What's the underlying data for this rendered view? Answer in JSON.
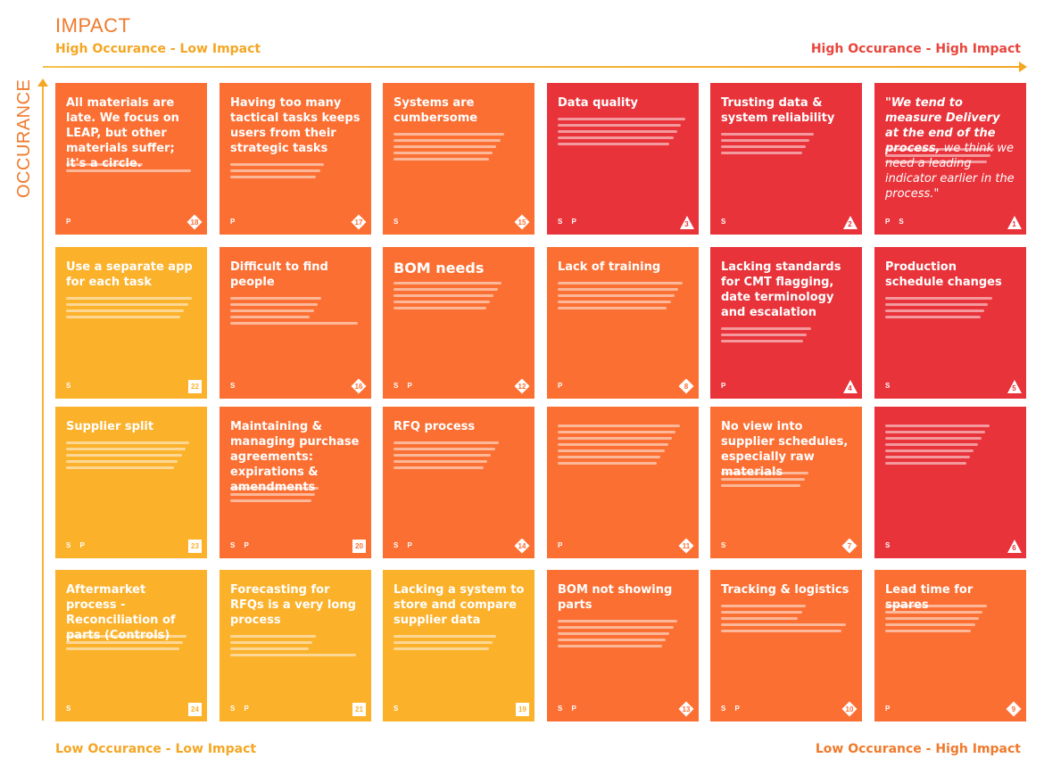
{
  "header": {
    "title": "IMPACT"
  },
  "corners": {
    "top_left": "High Occurance - Low Impact",
    "top_right": "High Occurance - High Impact",
    "bottom_left": "Low Occurance - Low Impact",
    "bottom_right": "Low Occurance - High Impact"
  },
  "y_axis_label": "OCCURANCE",
  "colors": {
    "yellow": "#fbb12a",
    "orange": "#fb6f33",
    "red": "#e8333a",
    "axis": "#f5a623"
  },
  "cards": [
    {
      "title": "All materials are late. We focus on LEAP, but other materials suffer; it's a circle.",
      "tags": "P",
      "number": "18",
      "badge": "diamond",
      "color": "orange"
    },
    {
      "title": "Having too many tactical tasks keeps users from their strategic tasks",
      "tags": "P",
      "number": "17",
      "badge": "diamond",
      "color": "orange"
    },
    {
      "title": "Systems are cumbersome",
      "tags": "S",
      "number": "15",
      "badge": "diamond",
      "color": "orange"
    },
    {
      "title": "Data quality",
      "tags": "S P",
      "number": "3",
      "badge": "triangle",
      "color": "red"
    },
    {
      "title": "Trusting data & system reliability",
      "tags": "S",
      "number": "2",
      "badge": "triangle",
      "color": "red"
    },
    {
      "title_bold": "\"We tend to measure Delivery at the end of the process,",
      "title_rest": " we think we need a leading indicator earlier in the process.\"",
      "tags": "P S",
      "number": "1",
      "badge": "triangle",
      "color": "red",
      "quote": true
    },
    {
      "title": "Use a separate app for each task",
      "tags": "S",
      "number": "22",
      "badge": "square",
      "color": "yellow"
    },
    {
      "title": "Difficult to find people",
      "tags": "S",
      "number": "16",
      "badge": "diamond",
      "color": "orange"
    },
    {
      "title": "BOM needs",
      "tags": "S P",
      "number": "12",
      "badge": "diamond",
      "color": "orange",
      "big": true
    },
    {
      "title": "Lack of training",
      "tags": "P",
      "number": "8",
      "badge": "diamond",
      "color": "orange"
    },
    {
      "title": "Lacking standards for CMT flagging, date terminology and escalation",
      "tags": "P",
      "number": "4",
      "badge": "triangle",
      "color": "red"
    },
    {
      "title": "Production schedule changes",
      "tags": "S",
      "number": "5",
      "badge": "triangle",
      "color": "red"
    },
    {
      "title": "Supplier split",
      "tags": "S P",
      "number": "23",
      "badge": "square",
      "color": "yellow"
    },
    {
      "title": "Maintaining & managing purchase agreements: expirations & amendments",
      "tags": "S P",
      "number": "20",
      "badge": "square",
      "color": "orange"
    },
    {
      "title": "RFQ process",
      "tags": "S P",
      "number": "14",
      "badge": "diamond",
      "color": "orange"
    },
    {
      "title": "",
      "tags": "P",
      "number": "11",
      "badge": "diamond",
      "color": "orange"
    },
    {
      "title": "No view into supplier schedules, especially raw materials",
      "tags": "S",
      "number": "7",
      "badge": "diamond",
      "color": "orange"
    },
    {
      "title": "",
      "tags": "S",
      "number": "6",
      "badge": "triangle",
      "color": "red"
    },
    {
      "title": "Aftermarket process - Reconciliation of parts (Controls)",
      "tags": "S",
      "number": "24",
      "badge": "square",
      "color": "yellow"
    },
    {
      "title": "Forecasting for RFQs is a very long process",
      "tags": "S P",
      "number": "21",
      "badge": "square",
      "color": "yellow"
    },
    {
      "title": "Lacking a system to store and compare supplier data",
      "tags": "S",
      "number": "19",
      "badge": "square",
      "color": "yellow"
    },
    {
      "title": "BOM not showing parts",
      "tags": "S P",
      "number": "13",
      "badge": "diamond",
      "color": "orange"
    },
    {
      "title": "Tracking & logistics",
      "tags": "S P",
      "number": "10",
      "badge": "diamond",
      "color": "orange"
    },
    {
      "title": "Lead time for spares",
      "tags": "P",
      "number": "9",
      "badge": "diamond",
      "color": "orange"
    }
  ]
}
